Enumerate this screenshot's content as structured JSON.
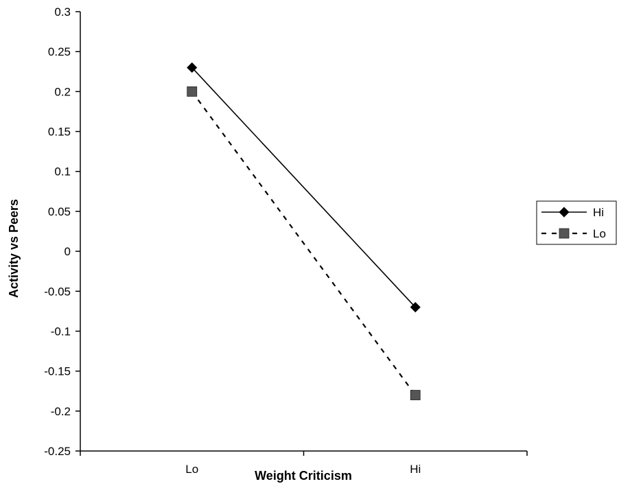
{
  "chart_data": {
    "type": "line",
    "title": "",
    "xlabel": "Weight Criticism",
    "ylabel": "Activity vs Peers",
    "categories": [
      "Lo",
      "Hi"
    ],
    "ylim": [
      -0.25,
      0.3
    ],
    "yticks": [
      "0.3",
      "0.25",
      "0.2",
      "0.15",
      "0.1",
      "0.05",
      "0",
      "-0.05",
      "-0.1",
      "-0.15",
      "-0.2",
      "-0.25"
    ],
    "grid": false,
    "legend_position": "right",
    "series": [
      {
        "name": "Hi",
        "values": [
          0.23,
          -0.07
        ],
        "color": "#000000",
        "line": "solid",
        "marker": "diamond"
      },
      {
        "name": "Lo",
        "values": [
          0.2,
          -0.18
        ],
        "color": "#000000",
        "marker_color": "#555555",
        "line": "dashed",
        "marker": "square"
      }
    ]
  }
}
